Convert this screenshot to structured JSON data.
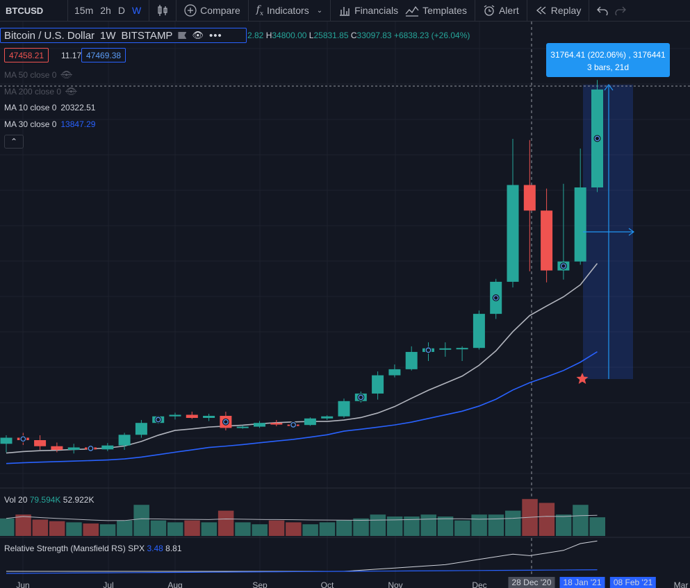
{
  "toolbar": {
    "symbol": "BTCUSD",
    "intervals": [
      "15m",
      "2h",
      "D",
      "W"
    ],
    "active_interval": "W",
    "compare_label": "Compare",
    "indicators_label": "Indicators",
    "financials_label": "Financials",
    "templates_label": "Templates",
    "alert_label": "Alert",
    "replay_label": "Replay"
  },
  "legend": {
    "title": "Bitcoin / U.S. Dollar",
    "interval": "1W",
    "exchange": "BITSTAMP",
    "open_tail": "2.82",
    "h_key": "H",
    "h_val": "34800.00",
    "l_key": "L",
    "l_val": "25831.85",
    "c_key": "C",
    "c_val": "33097.83",
    "change": "+6838.23 (+26.04%)",
    "bid": "47458.21",
    "spread": "11.17",
    "ask": "47469.38"
  },
  "indicators": [
    {
      "label": "MA 50 close 0",
      "value": "",
      "hidden": true
    },
    {
      "label": "MA 200 close 0",
      "value": "",
      "hidden": true
    },
    {
      "label": "MA 10 close 0",
      "value": "20322.51",
      "hidden": false
    },
    {
      "label": "MA 30 close 0",
      "value": "13847.29",
      "hidden": false
    }
  ],
  "tooltip": {
    "line1": "31764.41 (202.06%) , 3176441",
    "line2": "3 bars, 21d"
  },
  "volume": {
    "label": "Vol 20",
    "v1": "79.594K",
    "v2": "52.922K"
  },
  "rs": {
    "label": "Relative Strength (Mansfield RS)",
    "symbol": "SPX",
    "v1": "3.48",
    "v2": "8.81"
  },
  "x_axis": {
    "labels": [
      "Jun",
      "Jul",
      "Aug",
      "Sep",
      "Oct",
      "Nov",
      "Dec",
      "Mar"
    ],
    "crosshair_date": "28 Dec '20",
    "range_start": "18 Jan '21",
    "range_end": "08 Feb '21"
  },
  "colors": {
    "up": "#26a69a",
    "down": "#ef5350",
    "ma10": "#b2b5be",
    "ma30": "#2962ff",
    "accent": "#2962ff"
  },
  "chart_data": {
    "type": "candlestick",
    "weekly_candles_ohlc": [
      [
        9450,
        9800,
        9100,
        9700
      ],
      [
        9700,
        9900,
        9400,
        9600
      ],
      [
        9600,
        9800,
        9200,
        9350
      ],
      [
        9350,
        9500,
        9100,
        9200
      ],
      [
        9200,
        9450,
        9050,
        9300
      ],
      [
        9300,
        9400,
        9150,
        9220
      ],
      [
        9220,
        9480,
        9150,
        9380
      ],
      [
        9380,
        9900,
        9200,
        9820
      ],
      [
        9820,
        11200,
        9700,
        10900
      ],
      [
        10900,
        11600,
        10800,
        11550
      ],
      [
        11550,
        11900,
        11250,
        11700
      ],
      [
        11700,
        12000,
        11300,
        11400
      ],
      [
        11400,
        11800,
        11100,
        11600
      ],
      [
        11600,
        12000,
        10000,
        10300
      ],
      [
        10300,
        10600,
        10200,
        10450
      ],
      [
        10450,
        11100,
        10300,
        10900
      ],
      [
        10900,
        11200,
        10500,
        10700
      ],
      [
        10700,
        11000,
        10500,
        10650
      ],
      [
        10650,
        11450,
        10550,
        11350
      ],
      [
        11350,
        11650,
        11200,
        11550
      ],
      [
        11550,
        13300,
        11400,
        13050
      ],
      [
        13050,
        14000,
        12900,
        13800
      ],
      [
        13800,
        16400,
        13200,
        15950
      ],
      [
        15950,
        17200,
        15700,
        16650
      ],
      [
        16650,
        19400,
        16500,
        18700
      ],
      [
        18700,
        19900,
        17600,
        19150
      ],
      [
        19150,
        19900,
        18100,
        19150
      ],
      [
        19150,
        19400,
        17600,
        19200
      ],
      [
        19200,
        24300,
        19000,
        23800
      ],
      [
        23800,
        29300,
        23100,
        28900
      ],
      [
        28900,
        42000,
        28000,
        38200
      ],
      [
        38200,
        41900,
        30300,
        36000
      ],
      [
        36000,
        37900,
        28800,
        30400
      ],
      [
        30400,
        38300,
        29200,
        31400
      ],
      [
        31400,
        41200,
        31100,
        38000
      ],
      [
        38000,
        48200,
        37600,
        47200
      ]
    ],
    "ma_lines": [
      "MA 10 close 0",
      "MA 30 close 0"
    ],
    "volume_panel": "Vol 20",
    "rs_panel": "Relative Strength (Mansfield RS) SPX"
  }
}
